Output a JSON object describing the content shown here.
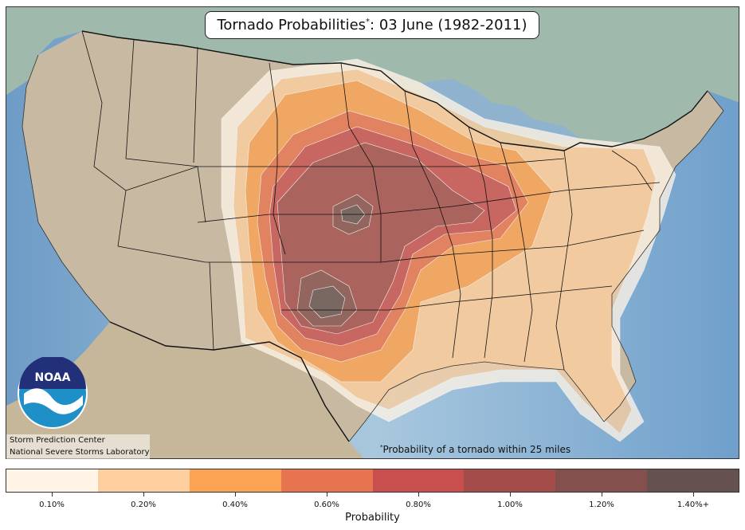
{
  "map": {
    "title_main": "Tornado Probabilities",
    "title_marker": "*",
    "title_sep": ": ",
    "title_date": "03 June (1982-2011)",
    "credits": [
      "Storm Prediction Center",
      "National Severe Storms Laboratory"
    ],
    "footnote_marker": "*",
    "footnote": "Probability of a tornado within 25 miles",
    "logo_text": "NOAA",
    "colors": {
      "ocean": "#6f9fc9",
      "land": "#c8b9a2",
      "canada": "#9fb9ad",
      "mexico": "#c7b79a",
      "border": "#111111"
    }
  },
  "colorbar": {
    "levels": [
      {
        "label": "0.10%",
        "color": "#fff4e6"
      },
      {
        "label": "0.20%",
        "color": "#fdcf9f"
      },
      {
        "label": "0.40%",
        "color": "#fca253"
      },
      {
        "label": "0.60%",
        "color": "#e8734f"
      },
      {
        "label": "0.80%",
        "color": "#c94f4f"
      },
      {
        "label": "1.00%",
        "color": "#a34c4a"
      },
      {
        "label": "1.20%",
        "color": "#84504d"
      },
      {
        "label": "1.40%+",
        "color": "#645150"
      }
    ],
    "axis_label": "Probability"
  }
}
